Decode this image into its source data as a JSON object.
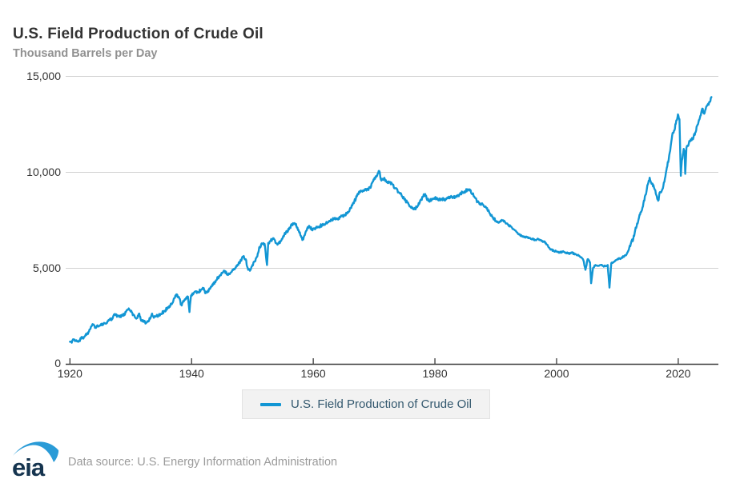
{
  "header": {
    "title": "U.S. Field Production of Crude Oil",
    "subtitle": "Thousand Barrels per Day"
  },
  "chart_data": {
    "type": "line",
    "title": "U.S. Field Production of Crude Oil",
    "xlabel": "",
    "ylabel": "Thousand Barrels per Day",
    "ylim": [
      0,
      15000
    ],
    "yticks": [
      0,
      5000,
      10000,
      15000
    ],
    "ytick_labels": [
      "0",
      "5,000",
      "10,000",
      "15,000"
    ],
    "xlim": [
      1919.3,
      2026.6
    ],
    "xticks": [
      1920,
      1940,
      1960,
      1980,
      2000,
      2020
    ],
    "xtick_labels": [
      "1920",
      "1940",
      "1960",
      "1980",
      "2000",
      "2020"
    ],
    "grid": "horizontal",
    "legend_position": "bottom",
    "noise_amplitude": 70,
    "colors": {
      "line": "#1296d4",
      "gridline": "#d2d2d2",
      "axis": "#3a3a3a",
      "title": "#333333",
      "subtitle": "#919191",
      "legend_text": "#33586e",
      "legend_bg": "#f2f2f2",
      "footer_text": "#9b9b9b",
      "logo_navy": "#15344f",
      "logo_blue": "#2a9bd7"
    },
    "series": [
      {
        "name": "U.S. Field Production of Crude Oil",
        "color": "#1296d4",
        "points_year_value": [
          [
            1920.0,
            1150
          ],
          [
            1920.3,
            1100
          ],
          [
            1920.6,
            1250
          ],
          [
            1921.0,
            1200
          ],
          [
            1921.4,
            1150
          ],
          [
            1921.8,
            1300
          ],
          [
            1922.3,
            1400
          ],
          [
            1922.8,
            1550
          ],
          [
            1923.3,
            1800
          ],
          [
            1923.8,
            2050
          ],
          [
            1924.2,
            1900
          ],
          [
            1924.6,
            1950
          ],
          [
            1925.0,
            2000
          ],
          [
            1925.5,
            2060
          ],
          [
            1926.0,
            2120
          ],
          [
            1926.5,
            2280
          ],
          [
            1927.0,
            2350
          ],
          [
            1927.4,
            2600
          ],
          [
            1927.8,
            2500
          ],
          [
            1928.2,
            2450
          ],
          [
            1928.7,
            2500
          ],
          [
            1929.2,
            2700
          ],
          [
            1929.6,
            2850
          ],
          [
            1930.0,
            2720
          ],
          [
            1930.5,
            2550
          ],
          [
            1931.0,
            2380
          ],
          [
            1931.4,
            2620
          ],
          [
            1931.7,
            2250
          ],
          [
            1932.0,
            2280
          ],
          [
            1932.5,
            2120
          ],
          [
            1933.0,
            2250
          ],
          [
            1933.5,
            2620
          ],
          [
            1933.8,
            2400
          ],
          [
            1934.2,
            2480
          ],
          [
            1934.6,
            2530
          ],
          [
            1935.0,
            2600
          ],
          [
            1935.5,
            2750
          ],
          [
            1936.0,
            2880
          ],
          [
            1936.5,
            3020
          ],
          [
            1937.0,
            3280
          ],
          [
            1937.5,
            3620
          ],
          [
            1938.0,
            3400
          ],
          [
            1938.3,
            3080
          ],
          [
            1938.7,
            3250
          ],
          [
            1939.0,
            3350
          ],
          [
            1939.4,
            3500
          ],
          [
            1939.65,
            2700
          ],
          [
            1939.9,
            3550
          ],
          [
            1940.3,
            3650
          ],
          [
            1940.7,
            3780
          ],
          [
            1941.0,
            3720
          ],
          [
            1941.5,
            3850
          ],
          [
            1942.0,
            3950
          ],
          [
            1942.3,
            3680
          ],
          [
            1942.7,
            3820
          ],
          [
            1943.0,
            3900
          ],
          [
            1943.5,
            4100
          ],
          [
            1944.0,
            4350
          ],
          [
            1944.5,
            4560
          ],
          [
            1945.0,
            4750
          ],
          [
            1945.4,
            4850
          ],
          [
            1945.8,
            4650
          ],
          [
            1946.2,
            4700
          ],
          [
            1946.6,
            4800
          ],
          [
            1947.0,
            4950
          ],
          [
            1947.5,
            5150
          ],
          [
            1948.0,
            5350
          ],
          [
            1948.5,
            5580
          ],
          [
            1948.9,
            5450
          ],
          [
            1949.3,
            4900
          ],
          [
            1949.6,
            4850
          ],
          [
            1950.0,
            5150
          ],
          [
            1950.4,
            5350
          ],
          [
            1950.8,
            5600
          ],
          [
            1951.2,
            6100
          ],
          [
            1951.6,
            6250
          ],
          [
            1952.0,
            6250
          ],
          [
            1952.4,
            5150
          ],
          [
            1952.6,
            6300
          ],
          [
            1953.0,
            6400
          ],
          [
            1953.4,
            6550
          ],
          [
            1953.8,
            6300
          ],
          [
            1954.2,
            6250
          ],
          [
            1954.6,
            6400
          ],
          [
            1955.0,
            6600
          ],
          [
            1955.5,
            6850
          ],
          [
            1956.0,
            7000
          ],
          [
            1956.5,
            7250
          ],
          [
            1957.0,
            7300
          ],
          [
            1957.4,
            7100
          ],
          [
            1957.8,
            6850
          ],
          [
            1958.2,
            6450
          ],
          [
            1958.6,
            6700
          ],
          [
            1959.0,
            7050
          ],
          [
            1959.4,
            7150
          ],
          [
            1959.8,
            7000
          ],
          [
            1960.2,
            7050
          ],
          [
            1960.6,
            7100
          ],
          [
            1961.0,
            7150
          ],
          [
            1961.5,
            7250
          ],
          [
            1962.0,
            7300
          ],
          [
            1962.5,
            7380
          ],
          [
            1963.0,
            7500
          ],
          [
            1963.5,
            7600
          ],
          [
            1964.0,
            7550
          ],
          [
            1964.5,
            7650
          ],
          [
            1965.0,
            7700
          ],
          [
            1965.5,
            7850
          ],
          [
            1966.0,
            8050
          ],
          [
            1966.5,
            8350
          ],
          [
            1967.0,
            8600
          ],
          [
            1967.5,
            8950
          ],
          [
            1968.0,
            9000
          ],
          [
            1968.5,
            9100
          ],
          [
            1969.0,
            9100
          ],
          [
            1969.5,
            9250
          ],
          [
            1970.0,
            9600
          ],
          [
            1970.4,
            9750
          ],
          [
            1970.85,
            10050
          ],
          [
            1971.2,
            9550
          ],
          [
            1971.6,
            9650
          ],
          [
            1972.0,
            9500
          ],
          [
            1972.5,
            9480
          ],
          [
            1973.0,
            9350
          ],
          [
            1973.5,
            9150
          ],
          [
            1974.0,
            8950
          ],
          [
            1974.5,
            8800
          ],
          [
            1975.0,
            8550
          ],
          [
            1975.5,
            8400
          ],
          [
            1976.0,
            8200
          ],
          [
            1976.5,
            8050
          ],
          [
            1977.0,
            8150
          ],
          [
            1977.5,
            8400
          ],
          [
            1978.0,
            8700
          ],
          [
            1978.4,
            8850
          ],
          [
            1978.8,
            8550
          ],
          [
            1979.2,
            8500
          ],
          [
            1979.6,
            8600
          ],
          [
            1980.0,
            8650
          ],
          [
            1980.5,
            8550
          ],
          [
            1981.0,
            8600
          ],
          [
            1981.5,
            8550
          ],
          [
            1982.0,
            8650
          ],
          [
            1982.5,
            8700
          ],
          [
            1983.0,
            8650
          ],
          [
            1983.5,
            8750
          ],
          [
            1984.0,
            8800
          ],
          [
            1984.5,
            8950
          ],
          [
            1985.0,
            9000
          ],
          [
            1985.4,
            9100
          ],
          [
            1985.8,
            9050
          ],
          [
            1986.2,
            8850
          ],
          [
            1986.6,
            8650
          ],
          [
            1987.0,
            8450
          ],
          [
            1987.5,
            8350
          ],
          [
            1988.0,
            8250
          ],
          [
            1988.5,
            8100
          ],
          [
            1989.0,
            7850
          ],
          [
            1989.5,
            7650
          ],
          [
            1990.0,
            7450
          ],
          [
            1990.5,
            7350
          ],
          [
            1991.0,
            7500
          ],
          [
            1991.5,
            7400
          ],
          [
            1992.0,
            7250
          ],
          [
            1992.5,
            7150
          ],
          [
            1993.0,
            7000
          ],
          [
            1993.5,
            6850
          ],
          [
            1994.0,
            6700
          ],
          [
            1994.5,
            6650
          ],
          [
            1995.0,
            6600
          ],
          [
            1995.5,
            6550
          ],
          [
            1996.0,
            6500
          ],
          [
            1996.5,
            6450
          ],
          [
            1997.0,
            6500
          ],
          [
            1997.5,
            6400
          ],
          [
            1998.0,
            6350
          ],
          [
            1998.5,
            6200
          ],
          [
            1999.0,
            5950
          ],
          [
            1999.5,
            5900
          ],
          [
            2000.0,
            5850
          ],
          [
            2000.5,
            5800
          ],
          [
            2001.0,
            5850
          ],
          [
            2001.5,
            5800
          ],
          [
            2002.0,
            5750
          ],
          [
            2002.5,
            5800
          ],
          [
            2003.0,
            5700
          ],
          [
            2003.5,
            5650
          ],
          [
            2004.0,
            5550
          ],
          [
            2004.4,
            5400
          ],
          [
            2004.75,
            4900
          ],
          [
            2005.1,
            5450
          ],
          [
            2005.5,
            5300
          ],
          [
            2005.68,
            4200
          ],
          [
            2006.0,
            5000
          ],
          [
            2006.4,
            5150
          ],
          [
            2006.8,
            5100
          ],
          [
            2007.2,
            5150
          ],
          [
            2007.6,
            5100
          ],
          [
            2008.0,
            5100
          ],
          [
            2008.4,
            5150
          ],
          [
            2008.7,
            3970
          ],
          [
            2009.0,
            5250
          ],
          [
            2009.4,
            5300
          ],
          [
            2009.8,
            5400
          ],
          [
            2010.2,
            5500
          ],
          [
            2010.6,
            5500
          ],
          [
            2011.0,
            5600
          ],
          [
            2011.4,
            5650
          ],
          [
            2011.8,
            5900
          ],
          [
            2012.2,
            6250
          ],
          [
            2012.6,
            6500
          ],
          [
            2013.0,
            7100
          ],
          [
            2013.4,
            7400
          ],
          [
            2013.8,
            7900
          ],
          [
            2014.2,
            8200
          ],
          [
            2014.6,
            8800
          ],
          [
            2015.0,
            9350
          ],
          [
            2015.3,
            9700
          ],
          [
            2015.7,
            9400
          ],
          [
            2016.0,
            9200
          ],
          [
            2016.4,
            8800
          ],
          [
            2016.7,
            8500
          ],
          [
            2017.0,
            8950
          ],
          [
            2017.4,
            9100
          ],
          [
            2017.8,
            9650
          ],
          [
            2018.2,
            10300
          ],
          [
            2018.6,
            11000
          ],
          [
            2019.0,
            11900
          ],
          [
            2019.3,
            12150
          ],
          [
            2019.6,
            12500
          ],
          [
            2019.95,
            13000
          ],
          [
            2020.2,
            12750
          ],
          [
            2020.42,
            9800
          ],
          [
            2020.6,
            10600
          ],
          [
            2020.75,
            10900
          ],
          [
            2020.9,
            11200
          ],
          [
            2021.05,
            11100
          ],
          [
            2021.15,
            9900
          ],
          [
            2021.35,
            11250
          ],
          [
            2021.6,
            11350
          ],
          [
            2021.9,
            11600
          ],
          [
            2022.2,
            11650
          ],
          [
            2022.5,
            11800
          ],
          [
            2022.8,
            12050
          ],
          [
            2023.1,
            12400
          ],
          [
            2023.4,
            12700
          ],
          [
            2023.7,
            12950
          ],
          [
            2023.95,
            13300
          ],
          [
            2024.2,
            13050
          ],
          [
            2024.5,
            13250
          ],
          [
            2024.75,
            13450
          ],
          [
            2025.0,
            13500
          ],
          [
            2025.2,
            13650
          ],
          [
            2025.45,
            13900
          ]
        ]
      }
    ]
  },
  "legend": {
    "label": "U.S. Field Production of Crude Oil"
  },
  "footer": {
    "logo_text": "eia",
    "source": "Data source: U.S. Energy Information Administration"
  }
}
